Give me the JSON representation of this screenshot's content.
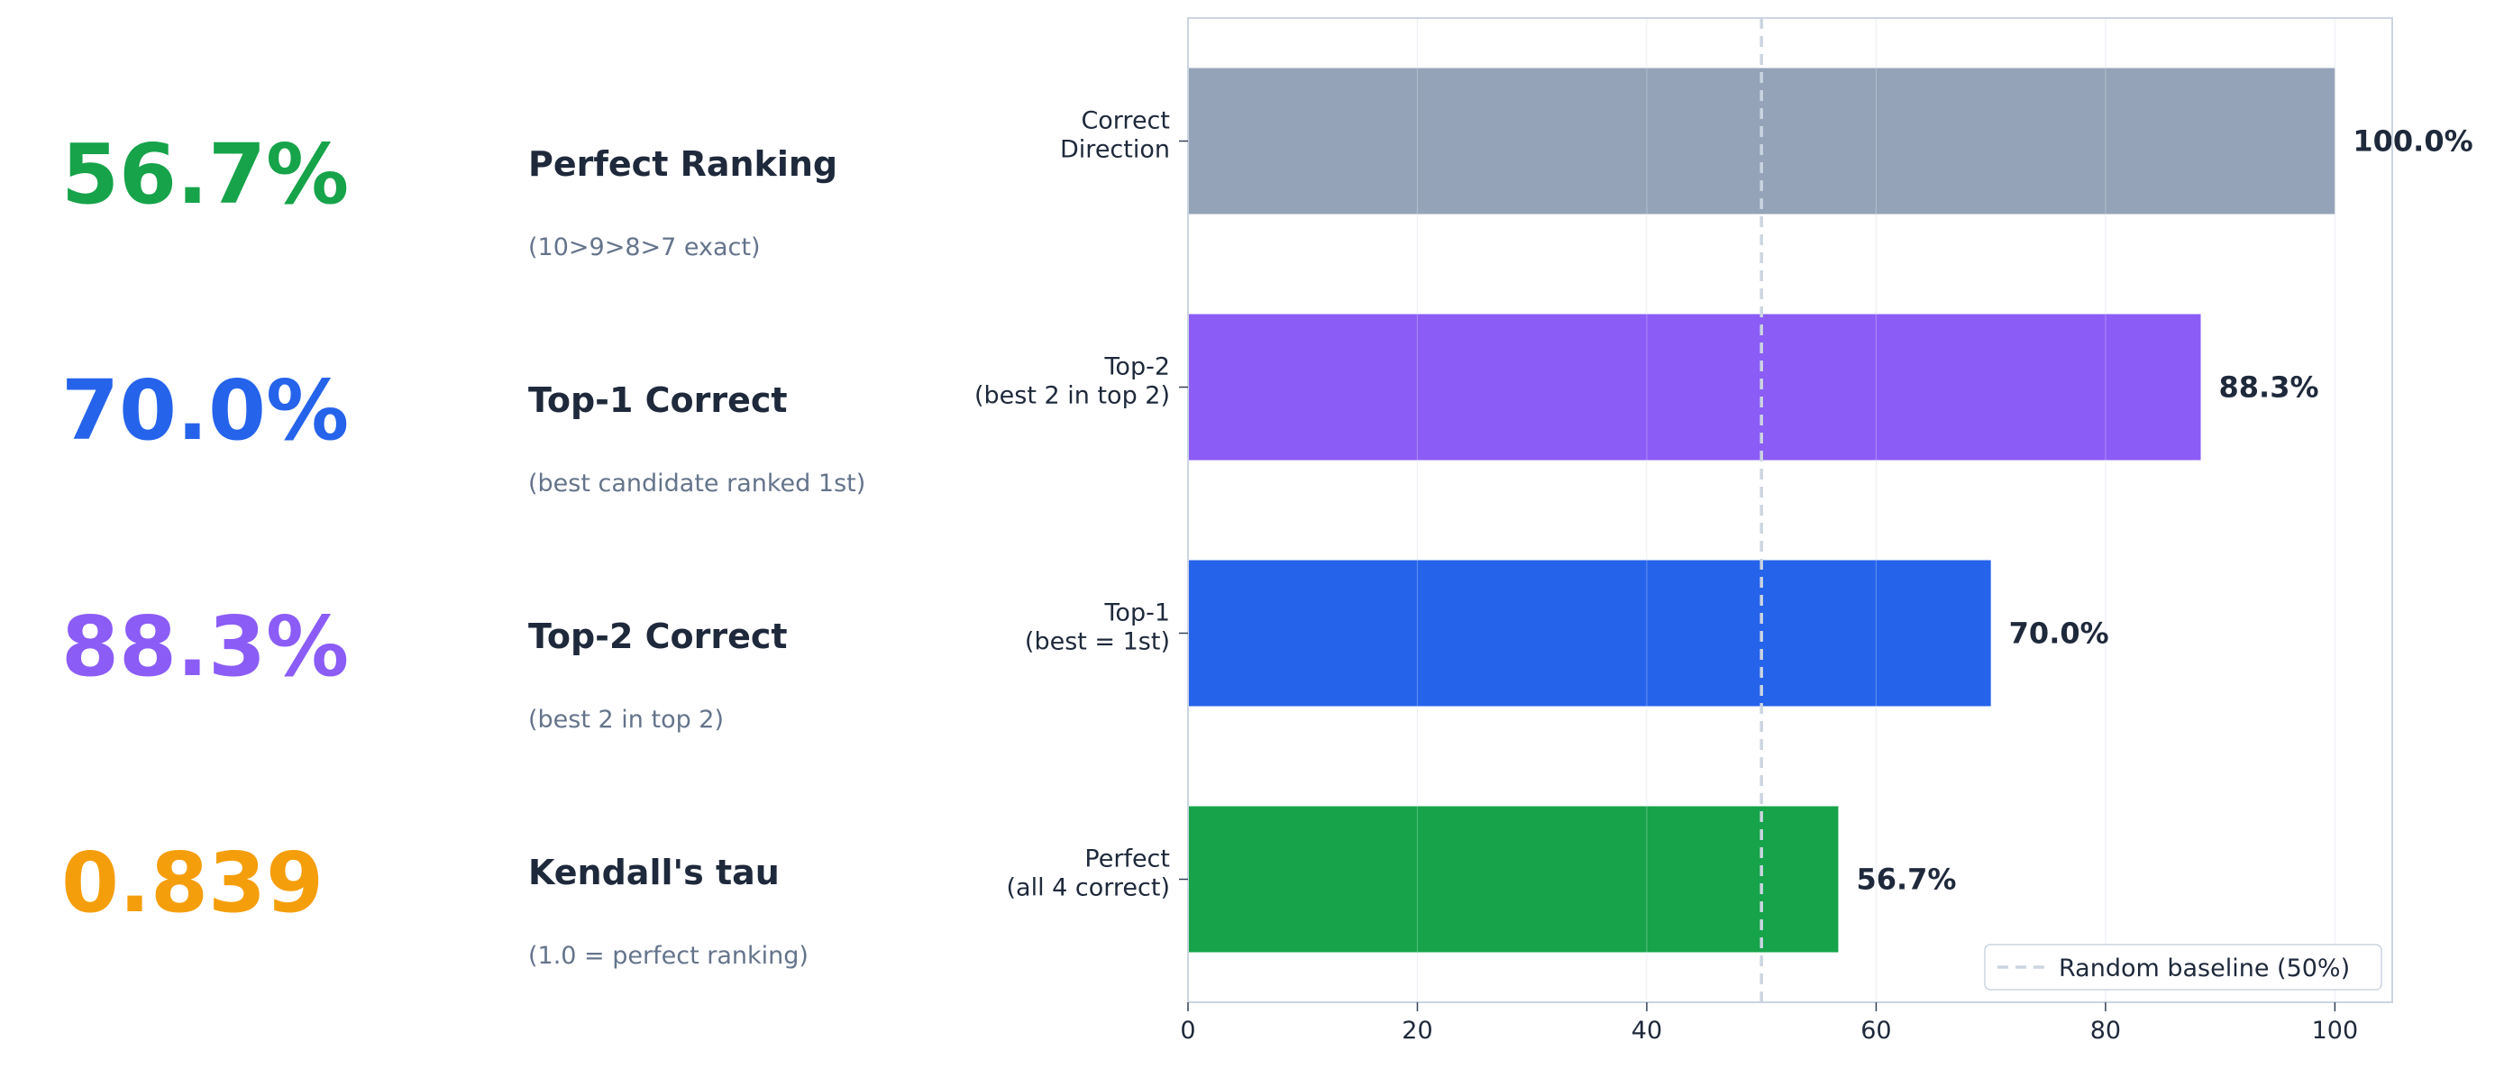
{
  "metrics": [
    {
      "value": "56.7%",
      "label": "Perfect Ranking",
      "note": "(10>9>8>7 exact)",
      "color": "#16a34a"
    },
    {
      "value": "70.0%",
      "label": "Top-1 Correct",
      "note": "(best candidate ranked 1st)",
      "color": "#2563eb"
    },
    {
      "value": "88.3%",
      "label": "Top-2 Correct",
      "note": "(best 2 in top 2)",
      "color": "#8b5cf6"
    },
    {
      "value": "0.839",
      "label": "Kendall's tau",
      "note": "(1.0 = perfect ranking)",
      "color": "#f59e0b"
    }
  ],
  "chart_data": {
    "type": "bar",
    "orientation": "horizontal",
    "categories": [
      [
        "Correct",
        "Direction"
      ],
      [
        "Top-2",
        "(best 2 in top 2)"
      ],
      [
        "Top-1",
        "(best = 1st)"
      ],
      [
        "Perfect",
        "(all 4 correct)"
      ]
    ],
    "values": [
      100.0,
      88.3,
      70.0,
      56.7
    ],
    "data_labels": [
      "100.0%",
      "88.3%",
      "70.0%",
      "56.7%"
    ],
    "colors": [
      "#94a3b8",
      "#8b5cf6",
      "#2563eb",
      "#16a34a"
    ],
    "xlim": [
      0,
      105
    ],
    "xticks": [
      0,
      20,
      40,
      60,
      80,
      100
    ],
    "grid": "vertical",
    "baseline": {
      "value": 50,
      "label": "Random baseline (50%)",
      "color": "#cbd5e1"
    },
    "legend_position": "bottom-right"
  }
}
